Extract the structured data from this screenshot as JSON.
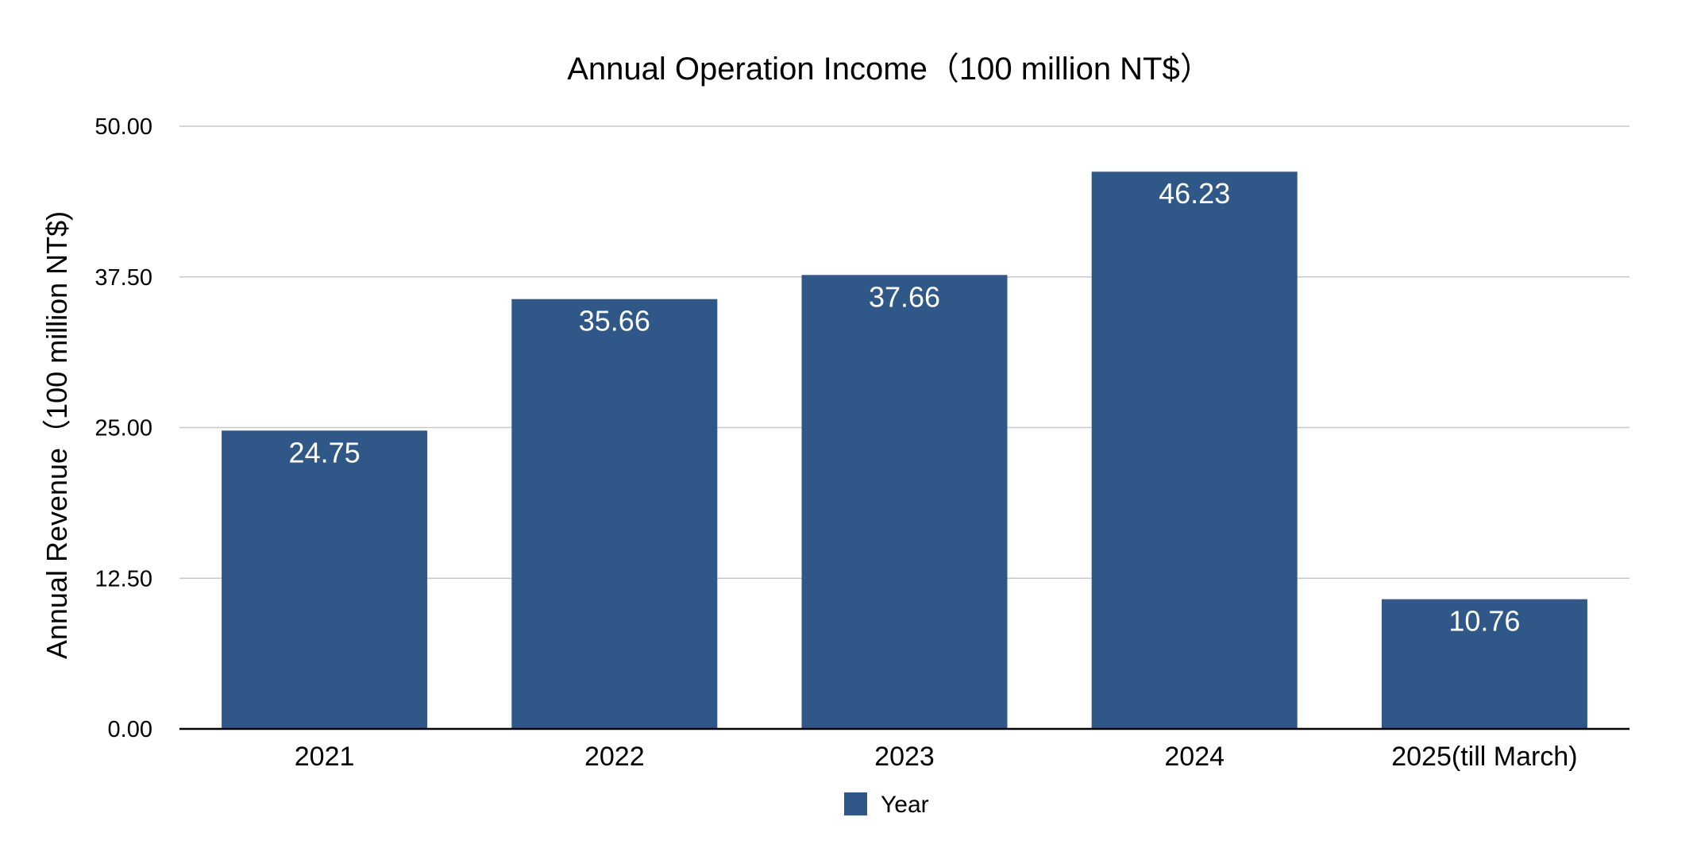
{
  "chart_data": {
    "type": "bar",
    "title": "Annual Operation Income（100 million NT$）",
    "xlabel": "",
    "ylabel": "Annual Revenue（100 million NT$)",
    "categories": [
      "2021",
      "2022",
      "2023",
      "2024",
      "2025(till March)"
    ],
    "series": [
      {
        "name": "Year",
        "values": [
          24.75,
          35.66,
          37.66,
          46.23,
          10.76
        ],
        "value_labels": [
          "24.75",
          "35.66",
          "37.66",
          "46.23",
          "10.76"
        ]
      }
    ],
    "ylim": [
      0,
      50
    ],
    "yticks": [
      0,
      12.5,
      25,
      37.5,
      50
    ],
    "ytick_labels": [
      "0.00",
      "12.50",
      "25.00",
      "37.50",
      "50.00"
    ],
    "grid": true,
    "legend_position": "bottom",
    "colors": {
      "bar": "#2f5889",
      "gridline": "#c8c8c8",
      "baseline": "#000000",
      "label_on_bar": "#ffffff"
    }
  }
}
